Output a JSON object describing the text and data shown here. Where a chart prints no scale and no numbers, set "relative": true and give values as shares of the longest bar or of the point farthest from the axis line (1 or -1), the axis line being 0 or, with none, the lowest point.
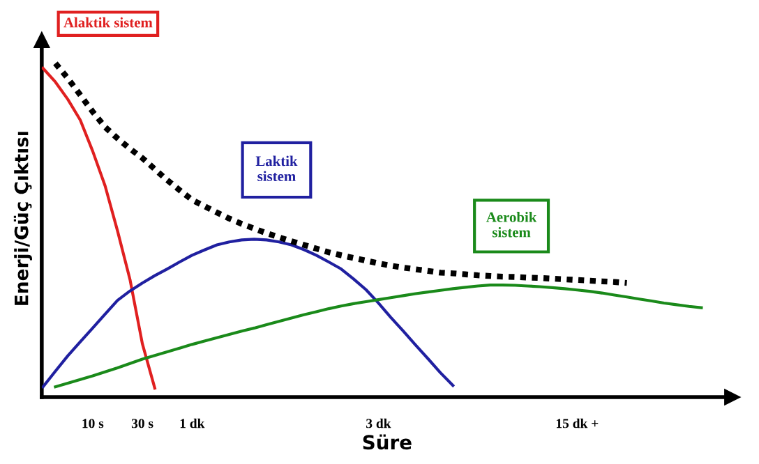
{
  "chart_data": {
    "type": "line",
    "relative": true,
    "xlabel": "Süre",
    "ylabel": "Enerji/Güç Çıktısı",
    "grid": false,
    "legend": false,
    "marker": "none",
    "categories": [
      null,
      null,
      null,
      null,
      "10 s",
      null,
      null,
      null,
      "30 s",
      null,
      null,
      null,
      "1 dk",
      null,
      null,
      null,
      null,
      null,
      null,
      null,
      null,
      null,
      null,
      null,
      null,
      null,
      null,
      "3 dk",
      null,
      null,
      null,
      null,
      null,
      null,
      null,
      null,
      null,
      null,
      null,
      null,
      null,
      null,
      null,
      "15 dk +",
      null,
      null,
      null,
      null,
      null,
      null,
      null,
      null,
      null,
      null,
      null,
      null
    ],
    "series": [
      {
        "name": "Alaktik sistem",
        "color": "#e02020",
        "line_style": "solid",
        "values": [
          0.985,
          0.944,
          0.892,
          0.83,
          0.737,
          0.633,
          0.498,
          0.353,
          0.16,
          0.027,
          null,
          null,
          null,
          null,
          null,
          null,
          null,
          null,
          null,
          null,
          null,
          null,
          null,
          null,
          null,
          null,
          null,
          null,
          null,
          null,
          null,
          null,
          null,
          null,
          null,
          null,
          null,
          null,
          null,
          null,
          null,
          null,
          null,
          null,
          null,
          null,
          null,
          null,
          null,
          null,
          null,
          null,
          null,
          null,
          null,
          null
        ]
      },
      {
        "name": "Laktik sistem",
        "color": "#2020a0",
        "line_style": "solid",
        "values": [
          0.031,
          0.078,
          0.124,
          0.166,
          0.207,
          0.249,
          0.29,
          0.318,
          0.342,
          0.364,
          0.384,
          0.405,
          0.425,
          0.441,
          0.456,
          0.465,
          0.471,
          0.473,
          0.471,
          0.465,
          0.456,
          0.442,
          0.425,
          0.405,
          0.384,
          0.354,
          0.322,
          0.282,
          0.239,
          0.198,
          0.156,
          0.115,
          0.073,
          0.035,
          null,
          null,
          null,
          null,
          null,
          null,
          null,
          null,
          null,
          null,
          null,
          null,
          null,
          null,
          null,
          null,
          null,
          null,
          null,
          null,
          null,
          null
        ]
      },
      {
        "name": "Aerobik sistem",
        "color": "#1a8a1a",
        "line_style": "solid",
        "values": [
          null,
          0.031,
          0.042,
          0.053,
          0.064,
          0.076,
          0.088,
          0.101,
          0.114,
          0.125,
          0.136,
          0.147,
          0.158,
          0.168,
          0.178,
          0.188,
          0.198,
          0.207,
          0.217,
          0.227,
          0.237,
          0.247,
          0.256,
          0.265,
          0.273,
          0.28,
          0.286,
          0.292,
          0.298,
          0.304,
          0.31,
          0.315,
          0.32,
          0.325,
          0.329,
          0.333,
          0.336,
          0.336,
          0.335,
          0.333,
          0.331,
          0.328,
          0.325,
          0.321,
          0.317,
          0.312,
          0.306,
          0.3,
          0.294,
          0.288,
          0.282,
          0.277,
          0.272,
          0.268,
          null,
          null
        ]
      },
      {
        "color": "#000000",
        "line_style": "dotted",
        "values": [
          null,
          1.0,
          0.955,
          0.905,
          0.855,
          0.809,
          0.775,
          0.744,
          0.716,
          0.683,
          0.65,
          0.62,
          0.591,
          0.572,
          0.553,
          0.535,
          0.519,
          0.505,
          0.491,
          0.479,
          0.467,
          0.456,
          0.445,
          0.434,
          0.425,
          0.417,
          0.409,
          0.401,
          0.394,
          0.388,
          0.383,
          0.378,
          0.373,
          0.371,
          0.368,
          0.365,
          0.363,
          0.361,
          0.36,
          0.358,
          0.357,
          0.355,
          0.353,
          0.351,
          0.349,
          0.347,
          0.345,
          0.342,
          null,
          null,
          null,
          null,
          null,
          null,
          null,
          null
        ]
      }
    ]
  }
}
